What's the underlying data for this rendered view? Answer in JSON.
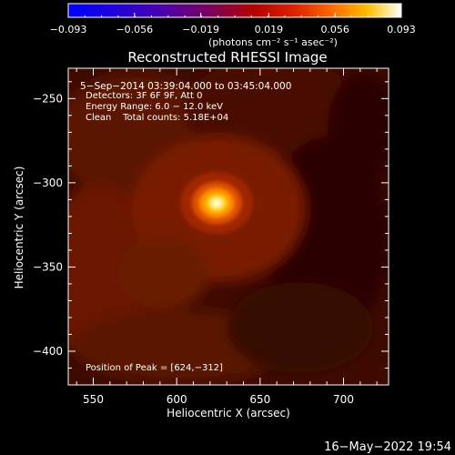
{
  "colorbar": {
    "ticks": [
      "−0.093",
      "−0.056",
      "−0.019",
      "0.019",
      "0.056",
      "0.093"
    ],
    "tick_values": [
      -0.093,
      -0.056,
      -0.019,
      0.019,
      0.056,
      0.093
    ],
    "range": [
      -0.093,
      0.093
    ],
    "units": "(photons cm⁻² s⁻¹ asec⁻²)"
  },
  "chart_data": {
    "type": "heatmap",
    "title": "Reconstructed RHESSI Image",
    "xlabel": "Heliocentric X (arcsec)",
    "ylabel": "Heliocentric Y (arcsec)",
    "xlim": [
      535,
      727
    ],
    "ylim": [
      -420,
      -232
    ],
    "xticks": [
      550,
      600,
      650,
      700
    ],
    "yticks": [
      -250,
      -300,
      -350,
      -400
    ],
    "xtick_labels": [
      "550",
      "600",
      "650",
      "700"
    ],
    "ytick_labels": [
      "−250",
      "−300",
      "−350",
      "−400"
    ],
    "peak": {
      "x": 624,
      "y": -312
    },
    "annotations": [
      "5−Sep−2014 03:39:04.000 to 03:45:04.000",
      "Detectors: 3F 6F 9F, Att 0",
      "Energy Range: 6.0 − 12.0 keV",
      "Clean    Total counts: 5.18E+04"
    ],
    "peak_label": "Position of Peak = [624,−312]"
  },
  "timestamp": "16−May−2022 19:54"
}
